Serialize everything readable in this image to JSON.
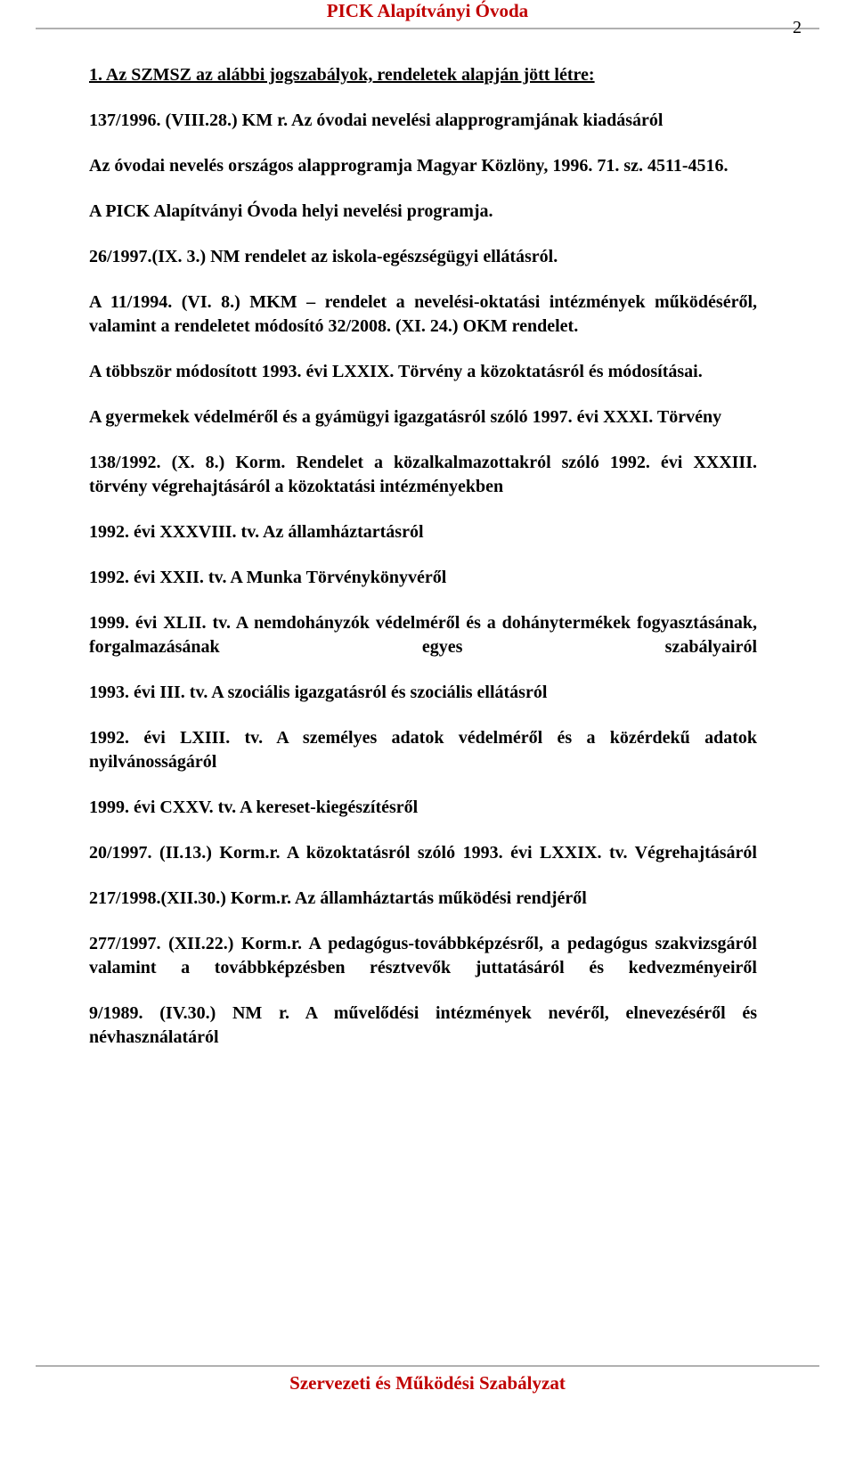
{
  "page_number": "2",
  "header": "PICK Alapítványi Óvoda",
  "footer": "Szervezeti és Működési Szabályzat",
  "colors": {
    "accent": "#c00000",
    "text": "#000000",
    "rule": "#b0b0b0",
    "background": "#ffffff"
  },
  "typography": {
    "family": "Times New Roman",
    "body_size_pt": 15,
    "body_weight": "bold"
  },
  "section_title": "1. Az SZMSZ az alábbi jogszabályok, rendeletek alapján jött létre:",
  "paragraphs": [
    "137/1996. (VIII.28.) KM r. Az óvodai nevelési alapprogramjának kiadásáról",
    "Az óvodai nevelés országos alapprogramja Magyar Közlöny, 1996. 71. sz. 4511-4516.",
    "A PICK Alapítványi Óvoda helyi nevelési programja.",
    "26/1997.(IX. 3.) NM rendelet az iskola-egészségügyi ellátásról.",
    "A 11/1994. (VI. 8.) MKM – rendelet a nevelési-oktatási intézmények működéséről, valamint a rendeletet módosító 32/2008. (XI. 24.) OKM rendelet.",
    "A többször módosított 1993. évi LXXIX. Törvény a közoktatásról és módosításai.",
    "A gyermekek védelméről és a gyámügyi igazgatásról szóló 1997. évi XXXI. Törvény",
    "138/1992. (X. 8.) Korm. Rendelet a közalkalmazottakról szóló 1992. évi XXXIII. törvény végrehajtásáról a közoktatási intézményekben",
    "1992. évi XXXVIII. tv. Az államháztartásról",
    "1992. évi XXII. tv.    A Munka Törvénykönyvéről",
    "1999. évi XLII. tv.  A nemdohányzók védelméről és a dohánytermékek fogyasztásának, forgalmazásának egyes szabályairól",
    "1993. évi III. tv.        A szociális igazgatásról és szociális ellátásról",
    "1992. évi LXIII. tv.  A személyes adatok védelméről és a közérdekű adatok nyilvánosságáról",
    "1999. évi CXXV. tv. A kereset-kiegészítésről",
    "20/1997. (II.13.) Korm.r.  A közoktatásról szóló 1993. évi LXXIX. tv. Végrehajtásáról",
    "217/1998.(XII.30.) Korm.r. Az államháztartás működési rendjéről",
    "277/1997. (XII.22.) Korm.r. A pedagógus-továbbképzésről, a pedagógus szakvizsgáról valamint a továbbképzésben résztvevők juttatásáról és kedvezményeiről",
    "9/1989. (IV.30.) NM r.      A művelődési intézmények nevéről, elnevezéséről és névhasználatáról"
  ]
}
